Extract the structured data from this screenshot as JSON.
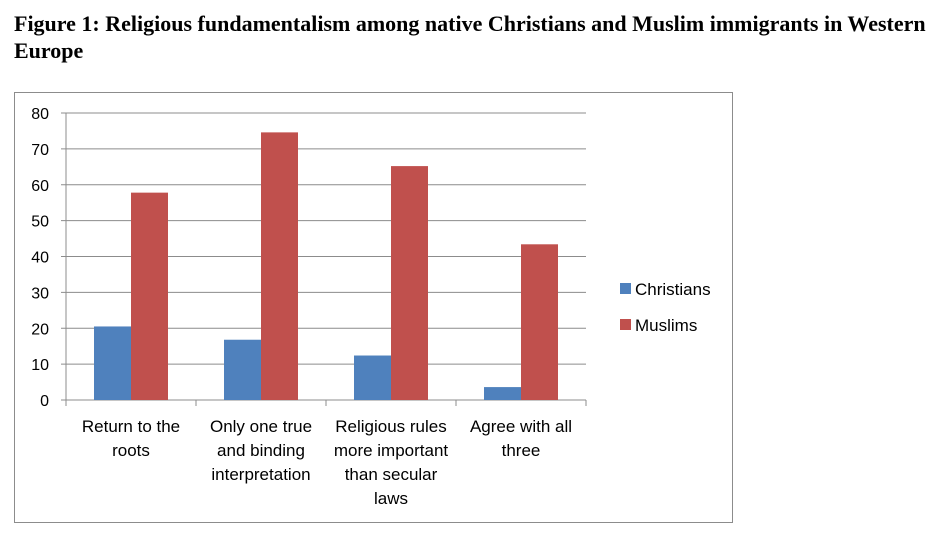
{
  "title": "Figure 1: Religious fundamentalism among native Christians and Muslim immigrants in Western Europe",
  "chart_data": {
    "type": "bar",
    "categories": [
      [
        "Return to the",
        "roots"
      ],
      [
        "Only one true",
        "and binding",
        "interpretation"
      ],
      [
        "Religious rules",
        "more important",
        "than secular",
        "laws"
      ],
      [
        "Agree with all",
        "three"
      ]
    ],
    "series": [
      {
        "name": "Christians",
        "values": [
          20.5,
          16.8,
          12.4,
          3.6
        ],
        "color": "#4f81bd"
      },
      {
        "name": "Muslims",
        "values": [
          57.8,
          74.6,
          65.2,
          43.4
        ],
        "color": "#c0504d"
      }
    ],
    "ylim": [
      0,
      80
    ],
    "yticks": [
      "0",
      "10",
      "20",
      "30",
      "40",
      "50",
      "60",
      "70",
      "80"
    ],
    "grid": true,
    "legend": "right"
  }
}
